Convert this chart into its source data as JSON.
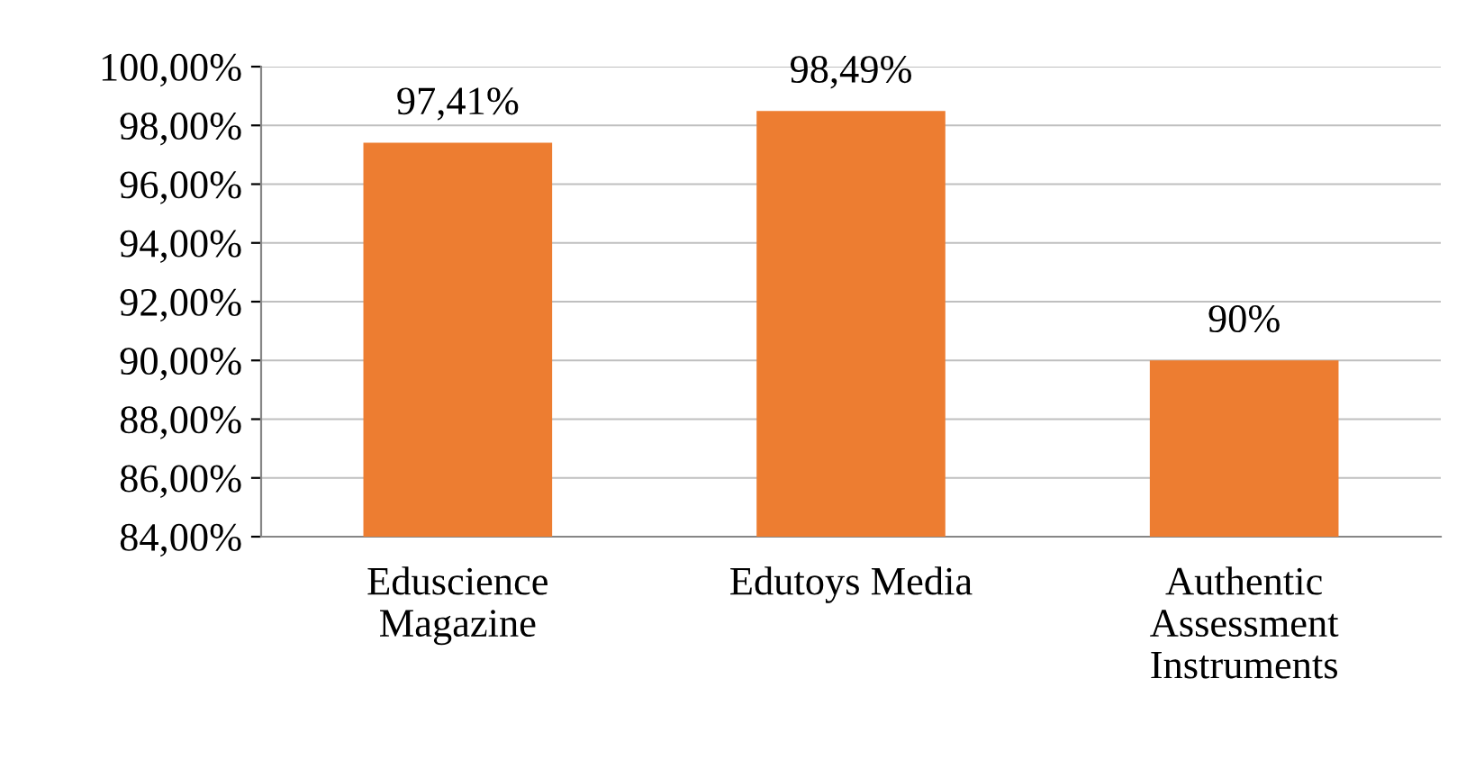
{
  "chart_data": {
    "type": "bar",
    "categories": [
      "Eduscience\nMagazine",
      "Edutoys Media",
      "Authentic\nAssessment\nInstruments"
    ],
    "values": [
      97.41,
      98.49,
      90
    ],
    "value_labels": [
      "97,41%",
      "98,49%",
      "90%"
    ],
    "color": "#ed7d31",
    "ylim": [
      84,
      100
    ],
    "yticks": [
      {
        "value": 84,
        "label": "84,00%"
      },
      {
        "value": 86,
        "label": "86,00%"
      },
      {
        "value": 88,
        "label": "88,00%"
      },
      {
        "value": 90,
        "label": "90,00%"
      },
      {
        "value": 92,
        "label": "92,00%"
      },
      {
        "value": 94,
        "label": "94,00%"
      },
      {
        "value": 96,
        "label": "96,00%"
      },
      {
        "value": 98,
        "label": "98,00%"
      },
      {
        "value": 100,
        "label": "100,00%"
      }
    ],
    "grid": "y"
  }
}
